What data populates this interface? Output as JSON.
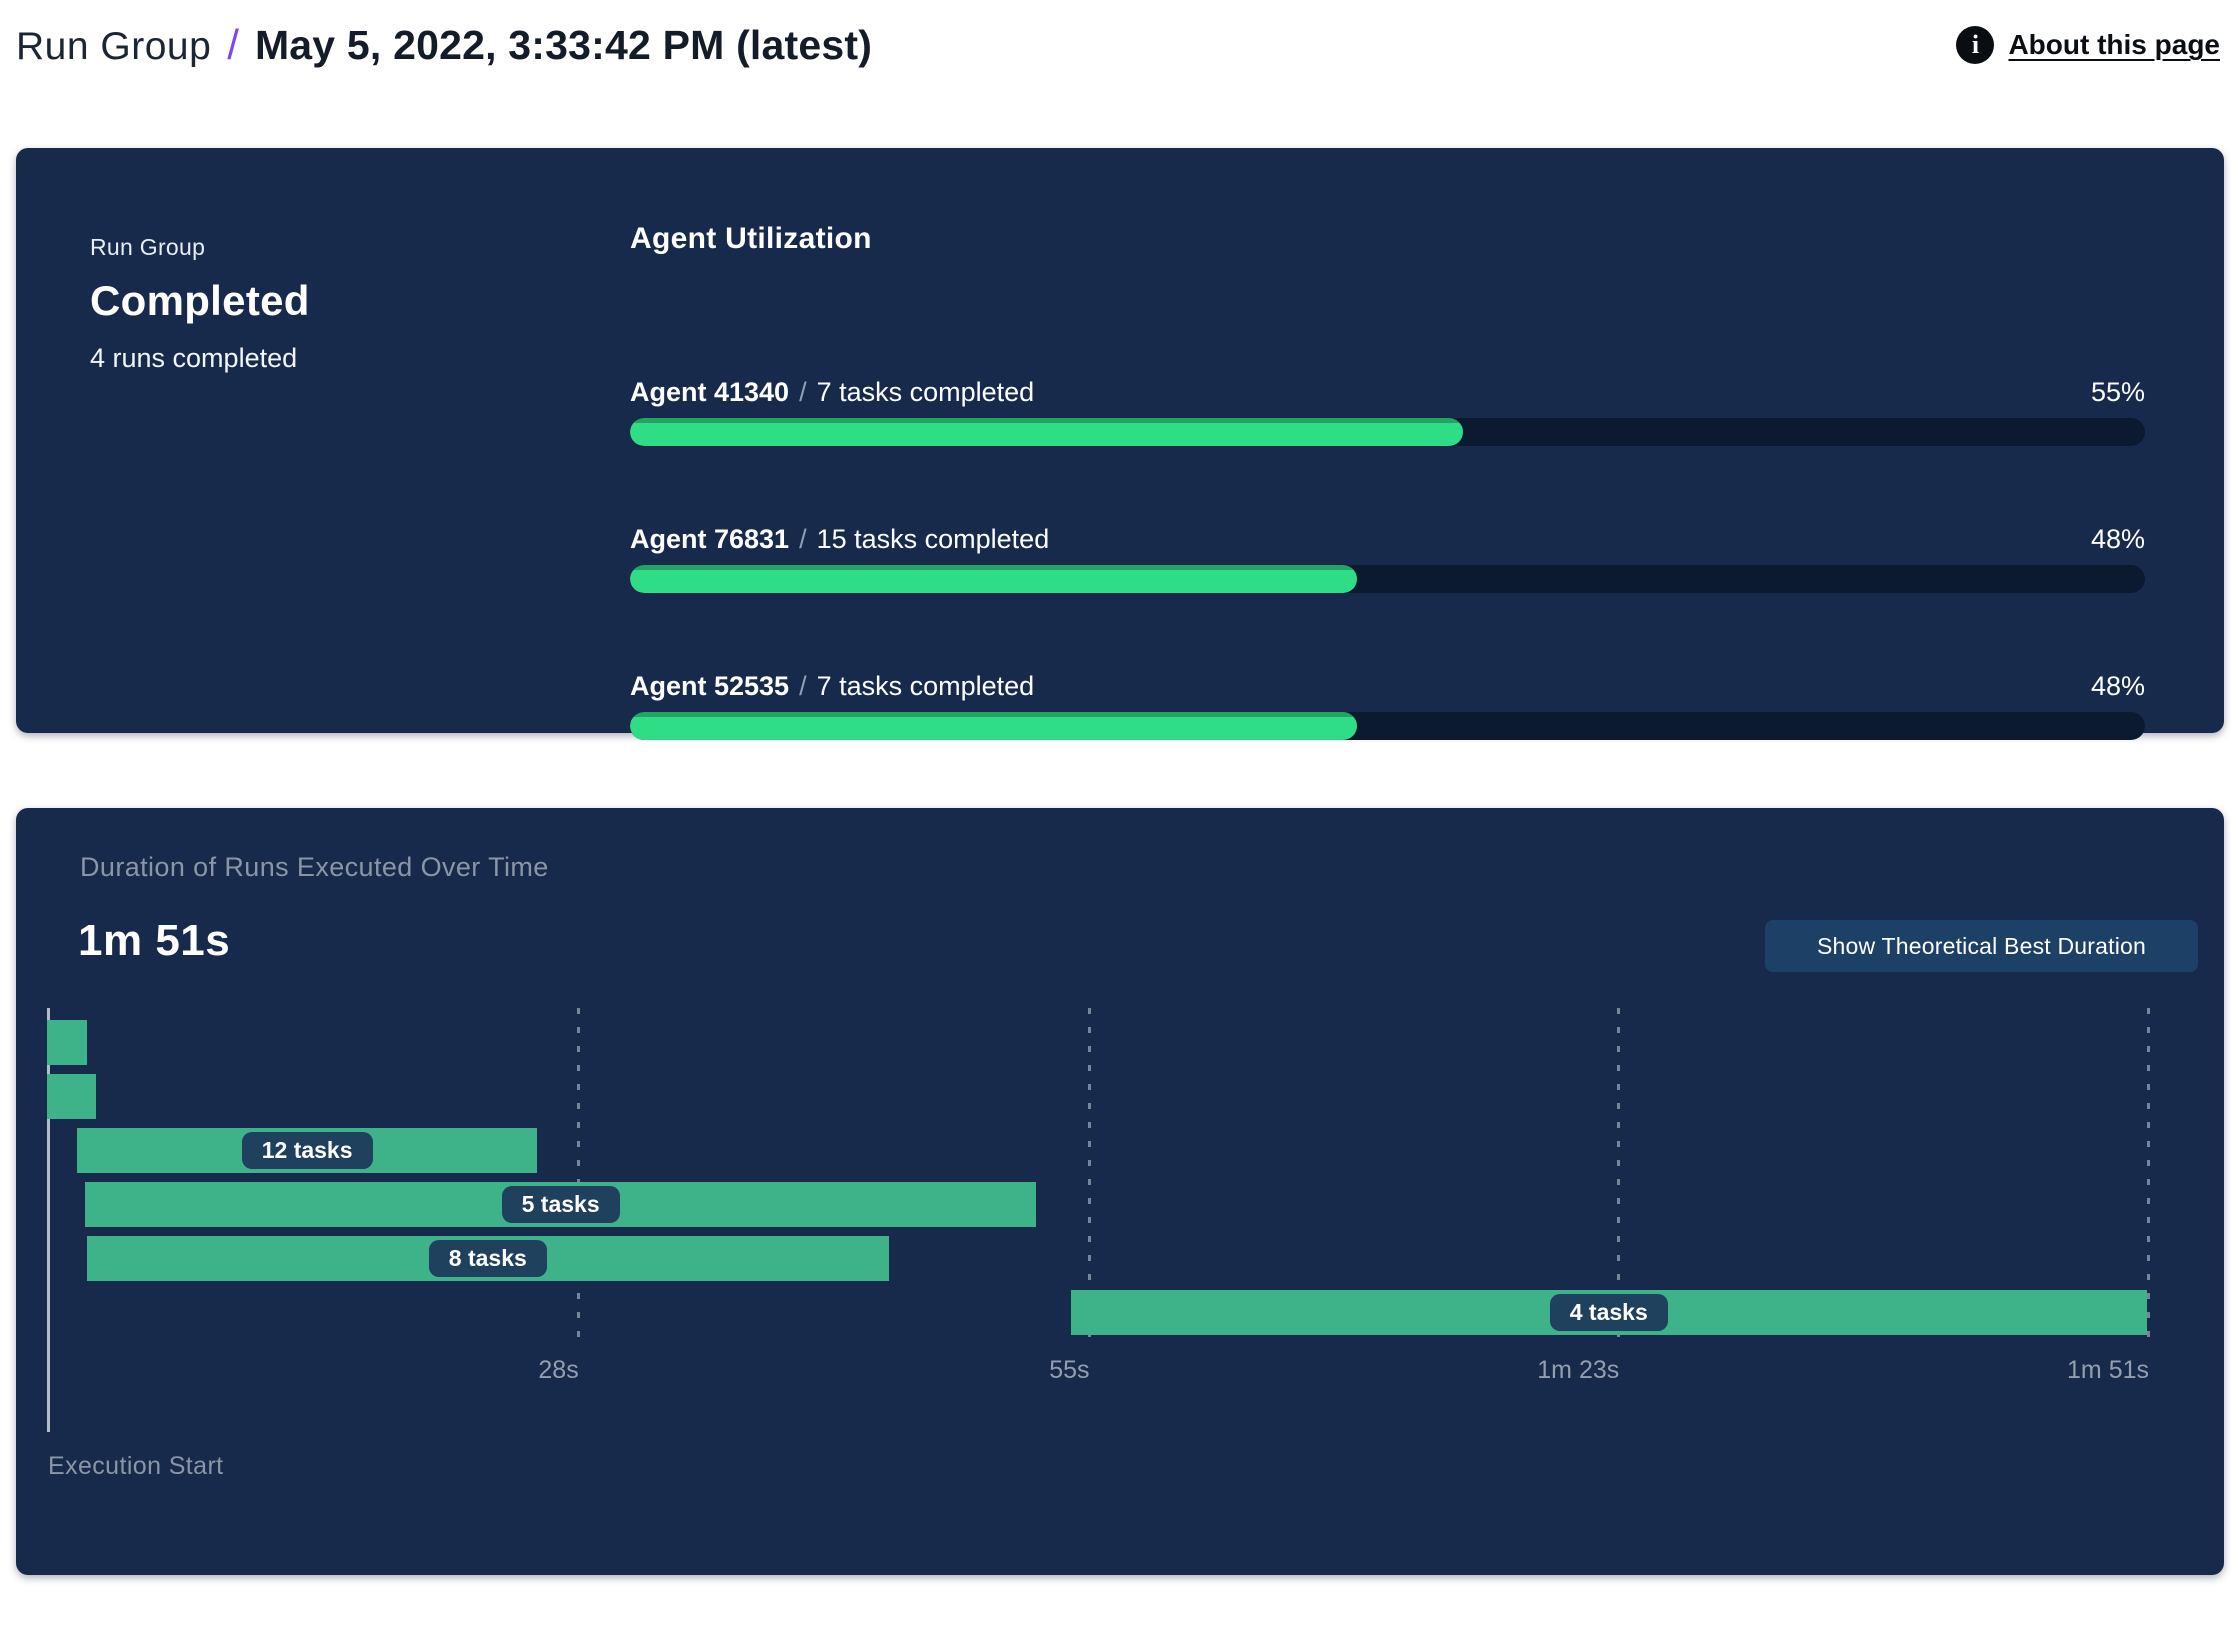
{
  "header": {
    "breadcrumb_root": "Run Group",
    "breadcrumb_separator": "/",
    "breadcrumb_current": "May 5, 2022, 3:33:42 PM (latest)",
    "about_link": "About this page"
  },
  "icons": {
    "info": "i"
  },
  "colors": {
    "panel_bg": "#172a4c",
    "track_bg": "#0c1a30",
    "utilization_green": "#2edd86",
    "gantt_green": "#3eb289",
    "separator_purple": "#7d47ea",
    "muted_text": "#8a95a6"
  },
  "run_group_panel": {
    "label": "Run Group",
    "status": "Completed",
    "runs_summary": "4 runs completed",
    "utilization": {
      "title": "Agent Utilization",
      "agents": [
        {
          "name": "Agent 41340",
          "separator": "/",
          "tasks": "7 tasks completed",
          "percent": "55%",
          "value": 55
        },
        {
          "name": "Agent 76831",
          "separator": "/",
          "tasks": "15 tasks completed",
          "percent": "48%",
          "value": 48
        },
        {
          "name": "Agent 52535",
          "separator": "/",
          "tasks": "7 tasks completed",
          "percent": "48%",
          "value": 48
        }
      ]
    }
  },
  "duration_panel": {
    "title": "Duration of Runs Executed Over Time",
    "total_duration": "1m 51s",
    "button_label": "Show Theoretical Best Duration",
    "execution_start_label": "Execution Start"
  },
  "chart_data": {
    "type": "bar",
    "subtype": "gantt-timeline",
    "title": "Duration of Runs Executed Over Time",
    "total_duration": "1m 51s",
    "xlabel": "Execution Start",
    "x_axis": {
      "max_seconds": 111,
      "ticks": [
        {
          "seconds": 28,
          "label": "28s"
        },
        {
          "seconds": 55,
          "label": "55s"
        },
        {
          "seconds": 83,
          "label": "1m 23s"
        },
        {
          "seconds": 111,
          "label": "1m 51s"
        }
      ]
    },
    "bars": [
      {
        "start_s": 0.0,
        "end_s": 2.1,
        "label": ""
      },
      {
        "start_s": 0.0,
        "end_s": 2.6,
        "label": ""
      },
      {
        "start_s": 1.6,
        "end_s": 25.9,
        "label": "12 tasks"
      },
      {
        "start_s": 2.0,
        "end_s": 52.3,
        "label": "5 tasks"
      },
      {
        "start_s": 2.1,
        "end_s": 44.5,
        "label": "8 tasks"
      },
      {
        "start_s": 54.1,
        "end_s": 111.0,
        "label": "4 tasks"
      }
    ]
  }
}
